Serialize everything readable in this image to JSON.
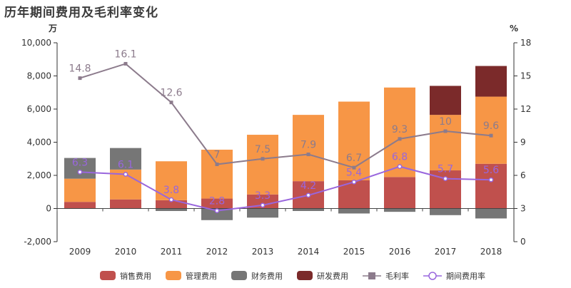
{
  "chart_data": {
    "type": "bar",
    "title": "历年期间费用及毛利率变化",
    "ylabel_left": "万",
    "ylabel_right": "%",
    "ylim_left": [
      -2000,
      10000
    ],
    "yticks_left": [
      "-2,000",
      "0",
      "2,000",
      "4,000",
      "6,000",
      "8,000",
      "10,000"
    ],
    "ylim_right": [
      0,
      18
    ],
    "yticks_right": [
      "0",
      "3",
      "6",
      "9",
      "12",
      "15",
      "18"
    ],
    "categories": [
      "2009",
      "2010",
      "2011",
      "2012",
      "2013",
      "2014",
      "2015",
      "2016",
      "2017",
      "2018"
    ],
    "stacked_series": [
      {
        "name": "销售费用",
        "color": "#c0504d",
        "values": [
          400,
          550,
          500,
          600,
          850,
          1650,
          1700,
          1900,
          2300,
          2700
        ]
      },
      {
        "name": "管理费用",
        "color": "#f79646",
        "values": [
          1400,
          1800,
          2350,
          2950,
          3600,
          4000,
          4750,
          5400,
          3350,
          4050
        ]
      },
      {
        "name": "财务费用",
        "color": "#767676",
        "values": [
          1250,
          1300,
          -150,
          -700,
          -550,
          -150,
          -300,
          -200,
          -400,
          -600
        ]
      },
      {
        "name": "研发费用",
        "color": "#7b2a2a",
        "values": [
          0,
          0,
          0,
          0,
          0,
          0,
          0,
          0,
          1750,
          1850
        ]
      }
    ],
    "line_series": [
      {
        "name": "毛利率",
        "color": "#8c7b8c",
        "marker": "square",
        "label_color": "#8c7b8c",
        "values": [
          14.8,
          16.1,
          12.6,
          7,
          7.5,
          7.9,
          6.7,
          9.3,
          10,
          9.6
        ],
        "labels": [
          "14.8",
          "16.1",
          "12.6",
          "7",
          "7.5",
          "7.9",
          "6.7",
          "9.3",
          "10",
          "9.6"
        ]
      },
      {
        "name": "期间费用率",
        "color": "#9966dd",
        "marker": "circle",
        "label_color": "#9966dd",
        "values": [
          6.3,
          6.1,
          3.8,
          2.8,
          3.3,
          4.2,
          5.4,
          6.8,
          5.7,
          5.6
        ],
        "labels": [
          "6.3",
          "6.1",
          "3.8",
          "2.8",
          "3.3",
          "4.2",
          "5.4",
          "6.8",
          "5.7",
          "5.6"
        ]
      }
    ],
    "legend_position": "bottom",
    "grid": false
  }
}
